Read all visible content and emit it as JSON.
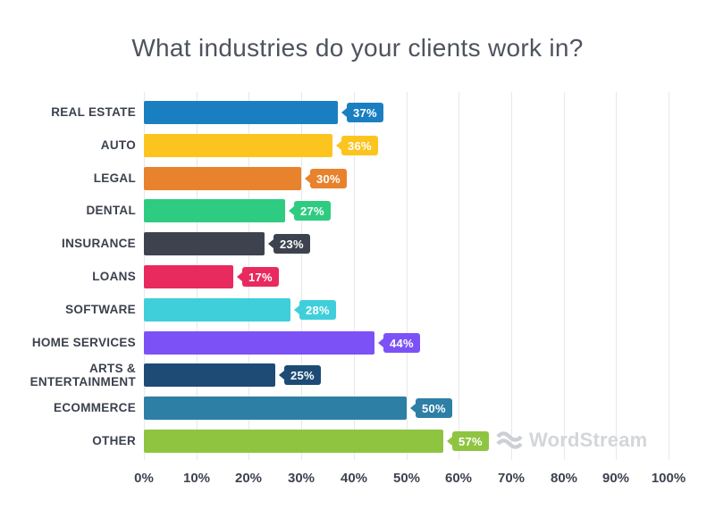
{
  "title": "What industries do your clients work in?",
  "watermark": {
    "text": "WordStream"
  },
  "chart_data": {
    "type": "bar",
    "orientation": "horizontal",
    "title": "What industries do your clients work in?",
    "categories": [
      "REAL ESTATE",
      "AUTO",
      "LEGAL",
      "DENTAL",
      "INSURANCE",
      "LOANS",
      "SOFTWARE",
      "HOME SERVICES",
      "ARTS & ENTERTAINMENT",
      "ECOMMERCE",
      "OTHER"
    ],
    "values": [
      37,
      36,
      30,
      27,
      23,
      17,
      28,
      44,
      25,
      50,
      57
    ],
    "value_labels": [
      "37%",
      "36%",
      "30%",
      "27%",
      "23%",
      "17%",
      "28%",
      "44%",
      "25%",
      "50%",
      "57%"
    ],
    "bar_colors": [
      "#1a7fc1",
      "#fcc41f",
      "#e8822c",
      "#2ecc80",
      "#3d434e",
      "#e92a5e",
      "#3ecfdb",
      "#7c52f6",
      "#1d4b75",
      "#2e7fa5",
      "#8fc441"
    ],
    "x_ticks": [
      "0%",
      "10%",
      "20%",
      "30%",
      "40%",
      "50%",
      "60%",
      "70%",
      "80%",
      "90%",
      "100%"
    ],
    "xlim": [
      0,
      100
    ],
    "grid": "vertical-light",
    "legend": "none",
    "value_label_style": "tag-badge-right-of-bar",
    "title_color": "#4e535e",
    "category_label_color": "#3b414d",
    "axis_tick_color": "#3d4350",
    "gridline_color": "#e6e8eb",
    "background_color": "#ffffff",
    "watermark_color": "#d3d6da"
  }
}
